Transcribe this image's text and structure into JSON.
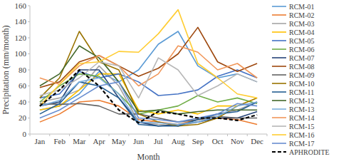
{
  "chart_data": {
    "type": "line",
    "x_label": "Month",
    "y_label": "Precipitation (mm/month)",
    "categories": [
      "Jan",
      "Feb",
      "Mar",
      "Apr",
      "May",
      "Jun",
      "Jul",
      "Aug",
      "Sep",
      "Oct",
      "Nov",
      "Dec"
    ],
    "ylim": [
      0,
      160
    ],
    "yticks": [
      0,
      20,
      40,
      60,
      80,
      100,
      120,
      140,
      160
    ],
    "grid": false,
    "legend": "right",
    "series": [
      {
        "name": "RCM-01",
        "color": "#5b9bd5",
        "values": [
          30,
          35,
          50,
          78,
          65,
          80,
          112,
          128,
          85,
          70,
          75,
          65
        ]
      },
      {
        "name": "RCM-02",
        "color": "#ed7d31",
        "values": [
          15,
          25,
          40,
          42,
          35,
          18,
          15,
          12,
          18,
          20,
          18,
          12
        ]
      },
      {
        "name": "RCM-03",
        "color": "#a5a5a5",
        "values": [
          40,
          45,
          55,
          85,
          60,
          15,
          12,
          10,
          15,
          25,
          30,
          40
        ]
      },
      {
        "name": "RCM-04",
        "color": "#ffc000",
        "values": [
          30,
          35,
          55,
          75,
          75,
          30,
          25,
          30,
          25,
          35,
          35,
          45
        ]
      },
      {
        "name": "RCM-05",
        "color": "#4472c4",
        "values": [
          45,
          50,
          78,
          70,
          75,
          65,
          48,
          50,
          55,
          72,
          80,
          70
        ]
      },
      {
        "name": "RCM-06",
        "color": "#70ad47",
        "values": [
          40,
          60,
          75,
          72,
          50,
          25,
          30,
          35,
          48,
          40,
          45,
          38
        ]
      },
      {
        "name": "RCM-07",
        "color": "#264478",
        "values": [
          35,
          40,
          80,
          80,
          45,
          15,
          10,
          12,
          15,
          20,
          20,
          28
        ]
      },
      {
        "name": "RCM-08",
        "color": "#9e480e",
        "values": [
          58,
          65,
          90,
          98,
          85,
          72,
          82,
          100,
          133,
          90,
          78,
          88
        ]
      },
      {
        "name": "RCM-09",
        "color": "#636363",
        "values": [
          38,
          37,
          38,
          35,
          25,
          25,
          20,
          15,
          18,
          22,
          20,
          20
        ]
      },
      {
        "name": "RCM-10",
        "color": "#997300",
        "values": [
          45,
          70,
          128,
          90,
          80,
          25,
          15,
          10,
          12,
          20,
          35,
          45
        ]
      },
      {
        "name": "RCM-11",
        "color": "#255e91",
        "values": [
          25,
          38,
          65,
          60,
          45,
          12,
          10,
          10,
          18,
          25,
          28,
          40
        ]
      },
      {
        "name": "RCM-12",
        "color": "#43682b",
        "values": [
          60,
          75,
          110,
          95,
          65,
          28,
          30,
          25,
          28,
          30,
          30,
          30
        ]
      },
      {
        "name": "RCM-13",
        "color": "#7cafdd",
        "values": [
          35,
          42,
          65,
          70,
          50,
          15,
          14,
          12,
          15,
          22,
          35,
          40
        ]
      },
      {
        "name": "RCM-14",
        "color": "#f1975a",
        "values": [
          70,
          62,
          85,
          98,
          85,
          60,
          75,
          110,
          102,
          80,
          88,
          70
        ]
      },
      {
        "name": "RCM-15",
        "color": "#b7b7b7",
        "values": [
          48,
          55,
          70,
          90,
          85,
          45,
          95,
          80,
          48,
          60,
          75,
          65
        ]
      },
      {
        "name": "RCM-16",
        "color": "#ffcd33",
        "values": [
          35,
          62,
          88,
          90,
          103,
          102,
          125,
          155,
          88,
          70,
          50,
          45
        ]
      },
      {
        "name": "RCM-17",
        "color": "#698ed0",
        "values": [
          20,
          30,
          45,
          60,
          65,
          20,
          18,
          15,
          20,
          25,
          38,
          35
        ]
      },
      {
        "name": "APHRODITE",
        "color": "#000000",
        "line_style": "dashed",
        "values": [
          35,
          55,
          80,
          60,
          30,
          14,
          28,
          25,
          20,
          20,
          17,
          24
        ]
      }
    ]
  }
}
